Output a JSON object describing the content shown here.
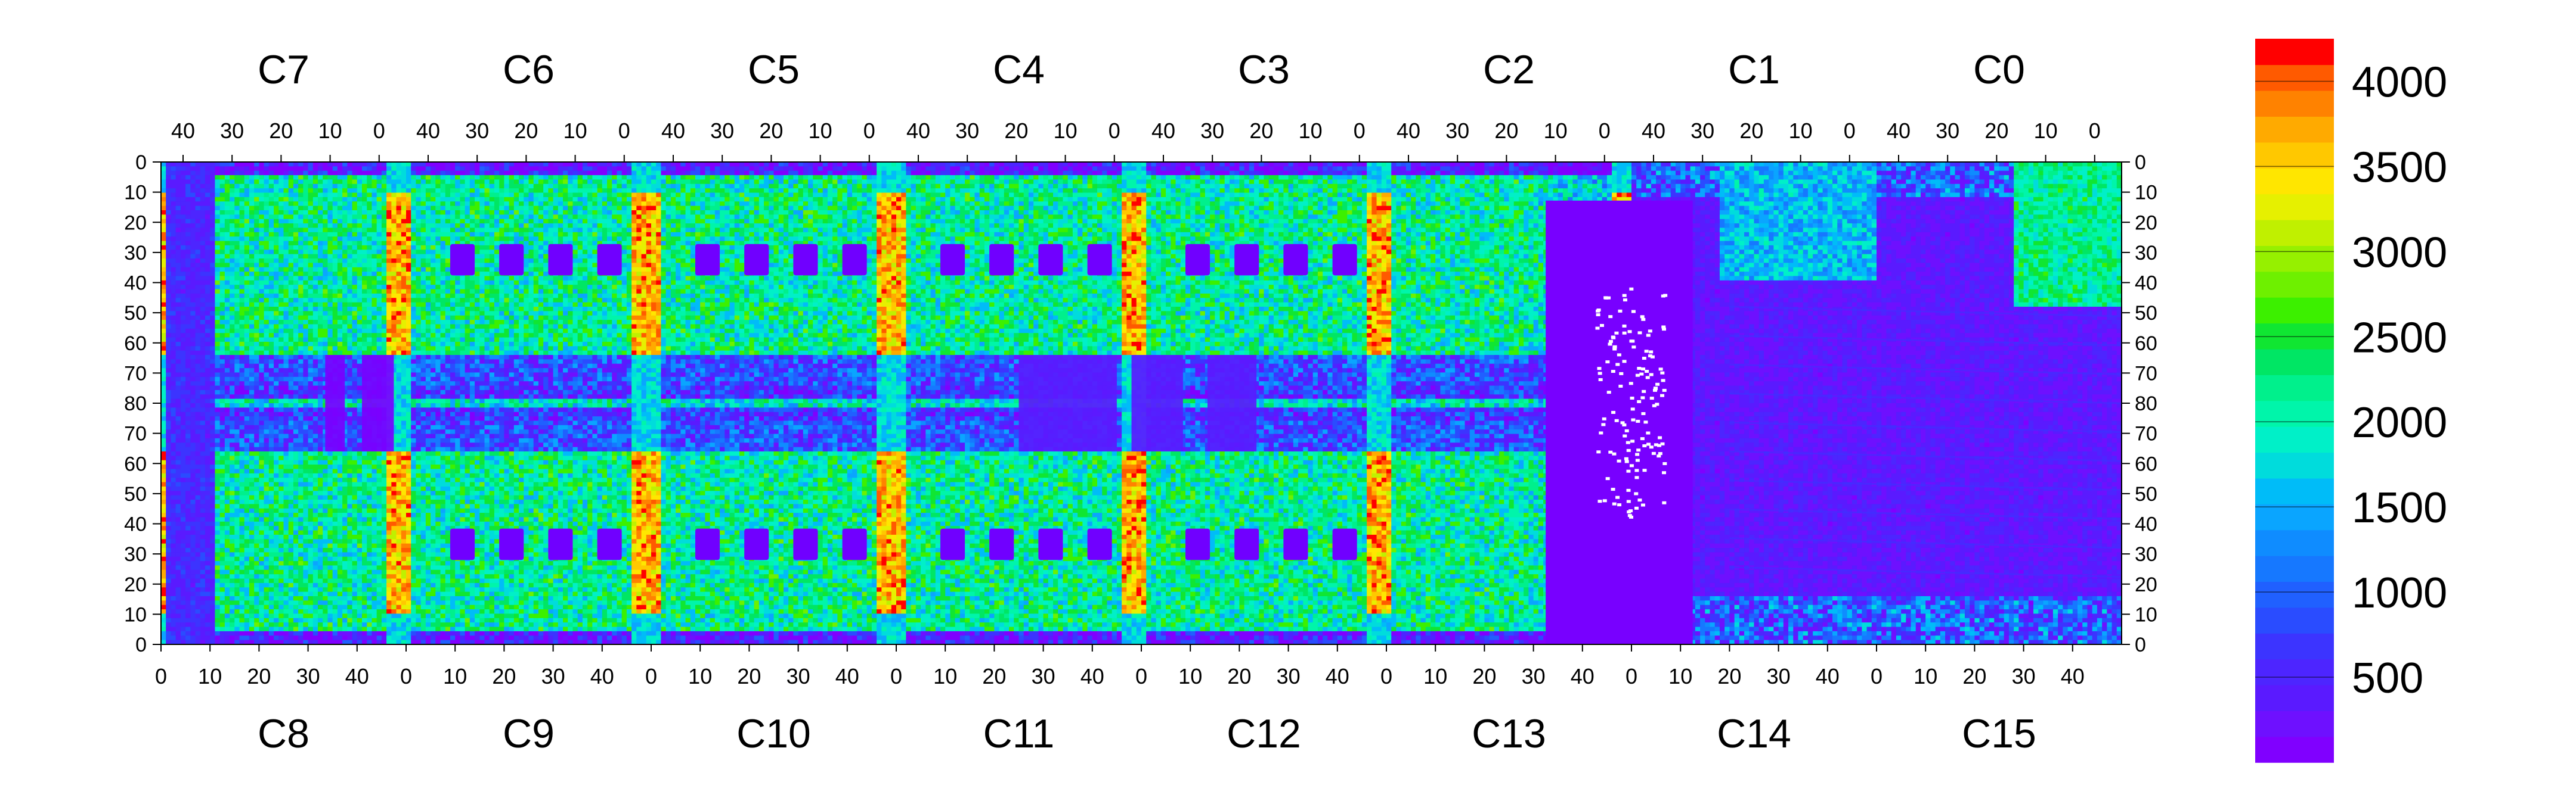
{
  "chart_data": {
    "type": "heatmap",
    "title": "",
    "chips": {
      "top": [
        "C7",
        "C6",
        "C5",
        "C4",
        "C3",
        "C2",
        "C1",
        "C0"
      ],
      "bottom": [
        "C8",
        "C9",
        "C10",
        "C11",
        "C12",
        "C13",
        "C14",
        "C15"
      ]
    },
    "top_ticks": [
      "40",
      "30",
      "20",
      "10",
      "0"
    ],
    "bottom_ticks": [
      "0",
      "10",
      "20",
      "30",
      "40"
    ],
    "row_ticks": [
      "0",
      "10",
      "20",
      "30",
      "40",
      "50",
      "60",
      "70",
      "80",
      "70",
      "60",
      "50",
      "40",
      "30",
      "20",
      "10",
      "0"
    ],
    "colorbar": {
      "min": 0,
      "max": 4250,
      "tick_labels": [
        "500",
        "1000",
        "1500",
        "2000",
        "2500",
        "3000",
        "3500",
        "4000"
      ],
      "tick_values": [
        500,
        1000,
        1500,
        2000,
        2500,
        3000,
        3500,
        4000
      ],
      "colors": [
        "#8000ff",
        "#6e10ff",
        "#5a1aff",
        "#4d25ff",
        "#3c34ff",
        "#2a4cff",
        "#2060ff",
        "#1678ff",
        "#0f8cff",
        "#0aa5ff",
        "#00bcf8",
        "#00dcdc",
        "#00f0c8",
        "#00f5aa",
        "#00f08c",
        "#00e664",
        "#10e632",
        "#3cf000",
        "#6ef000",
        "#96f000",
        "#c0f000",
        "#e6f000",
        "#ffe600",
        "#ffc800",
        "#ffaa00",
        "#ff8200",
        "#ff5a00",
        "#ff0000"
      ]
    }
  }
}
